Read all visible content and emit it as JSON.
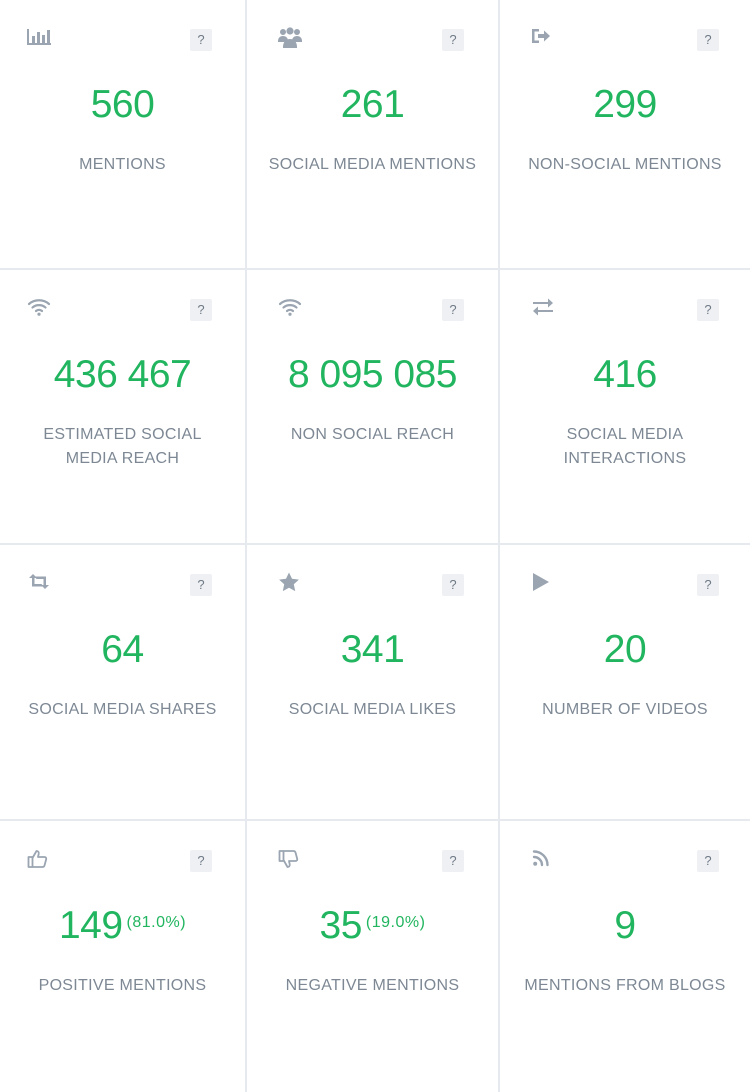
{
  "help_label": "?",
  "cards": [
    {
      "icon": "bar-chart-icon",
      "value": "560",
      "label": "MENTIONS"
    },
    {
      "icon": "users-icon",
      "value": "261",
      "label": "SOCIAL MEDIA MENTIONS"
    },
    {
      "icon": "sign-out-icon",
      "value": "299",
      "label": "NON-SOCIAL MENTIONS"
    },
    {
      "icon": "wifi-icon",
      "value": "436 467",
      "label": "ESTIMATED SOCIAL MEDIA REACH"
    },
    {
      "icon": "wifi-icon",
      "value": "8 095 085",
      "label": "NON SOCIAL REACH"
    },
    {
      "icon": "exchange-arrows-icon",
      "value": "416",
      "label": "SOCIAL MEDIA INTERACTIONS"
    },
    {
      "icon": "retweet-icon",
      "value": "64",
      "label": "SOCIAL MEDIA SHARES"
    },
    {
      "icon": "star-icon",
      "value": "341",
      "label": "SOCIAL MEDIA LIKES"
    },
    {
      "icon": "play-icon",
      "value": "20",
      "label": "NUMBER OF VIDEOS"
    },
    {
      "icon": "thumbs-up-icon",
      "value": "149",
      "percent": "(81.0%)",
      "label": "POSITIVE MENTIONS"
    },
    {
      "icon": "thumbs-down-icon",
      "value": "35",
      "percent": "(19.0%)",
      "label": "NEGATIVE MENTIONS"
    },
    {
      "icon": "rss-icon",
      "value": "9",
      "label": "MENTIONS FROM BLOGS"
    }
  ],
  "colors": {
    "value": "#21b55f",
    "label": "#7d8894",
    "icon": "#9aa5b1",
    "border": "#e6e9ed"
  }
}
